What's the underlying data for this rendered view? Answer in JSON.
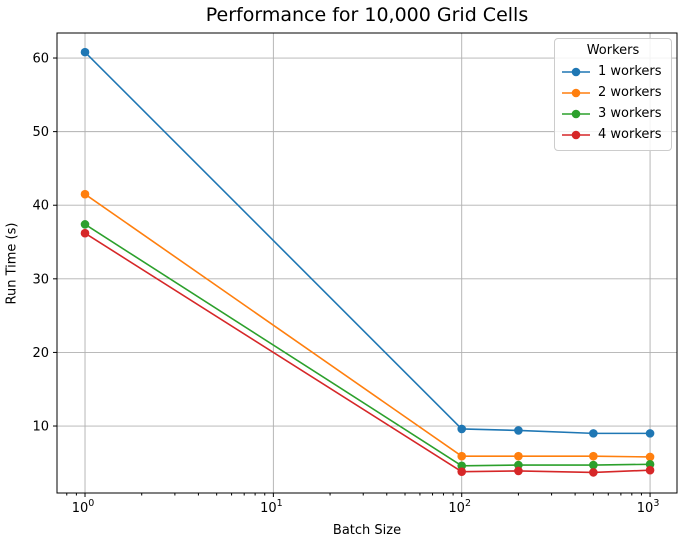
{
  "chart_data": {
    "type": "line",
    "title": "Performance for 10,000 Grid Cells",
    "xlabel": "Batch Size",
    "ylabel": "Run Time (s)",
    "legend_title": "Workers",
    "legend_position": "upper right",
    "x_scale": "log",
    "grid": true,
    "marker": "o",
    "x": [
      1,
      100,
      200,
      500,
      1000
    ],
    "series": [
      {
        "name": "1 workers",
        "color": "#1f77b4",
        "values": [
          60.8,
          9.6,
          9.4,
          9.0,
          9.0
        ]
      },
      {
        "name": "2 workers",
        "color": "#ff7f0e",
        "values": [
          41.5,
          5.9,
          5.9,
          5.9,
          5.8
        ]
      },
      {
        "name": "3 workers",
        "color": "#2ca02c",
        "values": [
          37.4,
          4.6,
          4.7,
          4.7,
          4.8
        ]
      },
      {
        "name": "4 workers",
        "color": "#d62728",
        "values": [
          36.2,
          3.8,
          3.9,
          3.7,
          4.0
        ]
      }
    ],
    "xlim": [
      0.71,
      1390
    ],
    "ylim": [
      0.9,
      63.4
    ],
    "y_ticks": [
      10,
      20,
      30,
      40,
      50,
      60
    ],
    "x_major_ticks": [
      1,
      10,
      100,
      1000
    ],
    "x_tick_base": "10",
    "x_tick_exponents": [
      "0",
      "1",
      "2",
      "3"
    ]
  },
  "style_colors": {
    "grid": "#b0b0b0",
    "spine": "#000000",
    "text": "#000000",
    "legend_border": "#cccccc",
    "background": "#ffffff"
  }
}
